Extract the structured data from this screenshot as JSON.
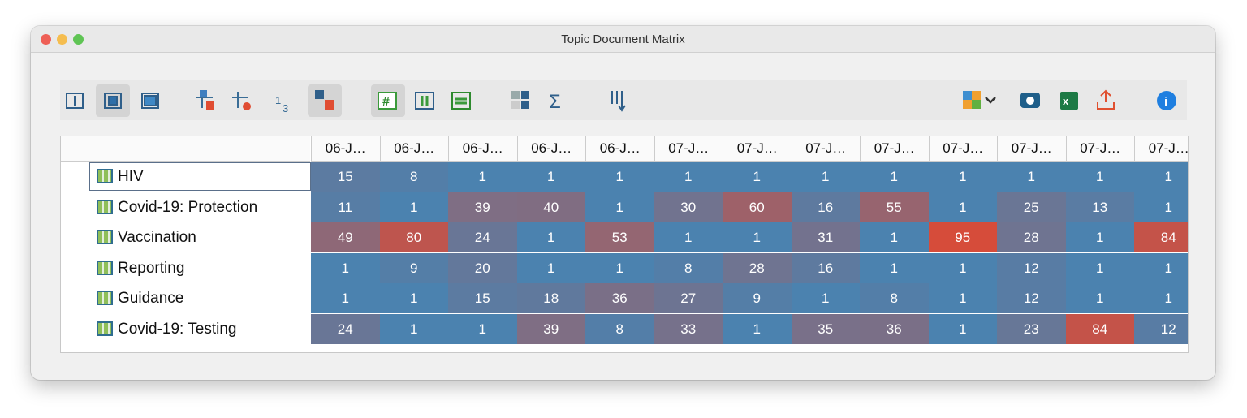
{
  "window": {
    "title": "Topic Document Matrix"
  },
  "table": {
    "columns": [
      "06-J…",
      "06-J…",
      "06-J…",
      "06-J…",
      "06-J…",
      "07-J…",
      "07-J…",
      "07-J…",
      "07-J…",
      "07-J…",
      "07-J…",
      "07-J…",
      "07-J…"
    ],
    "rows": [
      {
        "label": "HIV",
        "values": [
          15,
          8,
          1,
          1,
          1,
          1,
          1,
          1,
          1,
          1,
          1,
          1,
          1
        ]
      },
      {
        "label": "Covid-19: Protection",
        "values": [
          11,
          1,
          39,
          40,
          1,
          30,
          60,
          16,
          55,
          1,
          25,
          13,
          1
        ]
      },
      {
        "label": "Vaccination",
        "values": [
          49,
          80,
          24,
          1,
          53,
          1,
          1,
          31,
          1,
          95,
          28,
          1,
          84
        ]
      },
      {
        "label": "Reporting",
        "values": [
          1,
          9,
          20,
          1,
          1,
          8,
          28,
          16,
          1,
          1,
          12,
          1,
          1
        ]
      },
      {
        "label": "Guidance",
        "values": [
          1,
          1,
          15,
          18,
          36,
          27,
          9,
          1,
          8,
          1,
          12,
          1,
          1
        ]
      },
      {
        "label": "Covid-19: Testing",
        "values": [
          24,
          1,
          1,
          39,
          8,
          33,
          1,
          35,
          36,
          1,
          23,
          84,
          12
        ]
      }
    ]
  }
}
